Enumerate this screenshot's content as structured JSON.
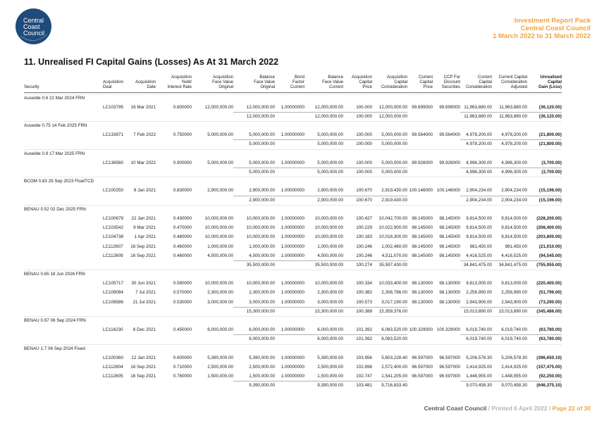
{
  "colors": {
    "accent": "#f2a33a",
    "logo": "#1f4b7b"
  },
  "logo": {
    "lines": [
      "Central",
      "Coast",
      "Council"
    ]
  },
  "brand": {
    "line1": "Investment Report Pack",
    "line2": "Central Coast Council",
    "line3": "1 March 2022 to 31 March 2022"
  },
  "title": "11. Unrealised FI Capital Gains (Losses) As At 31 March 2022",
  "table": {
    "columns": [
      [
        "Security"
      ],
      [
        "Acquisition",
        "Deal"
      ],
      [
        "Acquisition",
        "Date"
      ],
      [
        "Acquisition",
        "Yield/",
        "Interest Rate"
      ],
      [
        "Acquisition",
        "Face Value",
        "Original"
      ],
      [
        "Balance",
        "Face Value",
        "Original"
      ],
      [
        "Bond",
        "Factor",
        "Current"
      ],
      [
        "Balance",
        "Face Value",
        "Current"
      ],
      [
        "Acquisition",
        "Capital",
        "Price"
      ],
      [
        "Acquisition",
        "Capital",
        "Consideration"
      ],
      [
        "Current",
        "Capital",
        "Price"
      ],
      [
        "CCP For",
        "Discount",
        "Securities"
      ],
      [
        "Current",
        "Capital",
        "Consideration"
      ],
      [
        "Current Capital",
        "Consideration",
        "Adjusted"
      ],
      [
        "Unrealised",
        "Capital",
        "Gain (Loss)"
      ]
    ],
    "groups": [
      {
        "security": "Auswide 0.6 22 Mar 2024 FRN",
        "rows": [
          [
            "LC103795",
            "16 Mar 2021",
            "0.600000",
            "12,000,000.00",
            "12,000,000.00",
            "1.00000000",
            "12,000,000.00",
            "100.000",
            "12,000,000.00",
            "99.699000",
            "99.699000",
            "11,963,880.00",
            "11,963,880.00",
            "(36,120.00)"
          ]
        ],
        "subtotal": [
          null,
          null,
          null,
          null,
          "12,000,000.00",
          null,
          "12,000,000.00",
          "100.000",
          "12,000,000.00",
          null,
          null,
          "11,963,880.00",
          "11,963,880.00",
          "(36,120.00)"
        ]
      },
      {
        "security": "Auswide 0.75 14 Feb 2025 FRN",
        "rows": [
          [
            "LC133971",
            "7 Feb 2022",
            "0.750000",
            "5,000,000.00",
            "5,000,000.00",
            "1.00000000",
            "5,000,000.00",
            "100.000",
            "5,000,000.00",
            "99.564000",
            "99.564000",
            "4,978,200.00",
            "4,978,200.00",
            "(21,800.00)"
          ]
        ],
        "subtotal": [
          null,
          null,
          null,
          null,
          "5,000,000.00",
          null,
          "5,000,000.00",
          "100.000",
          "5,000,000.00",
          null,
          null,
          "4,978,200.00",
          "4,978,200.00",
          "(21,800.00)"
        ]
      },
      {
        "security": "Auswide 0.9 17 Mar 2025 FRN",
        "rows": [
          [
            "LC136560",
            "10 Mar 2022",
            "0.900000",
            "5,000,000.00",
            "5,000,000.00",
            "1.00000000",
            "5,000,000.00",
            "100.000",
            "5,000,000.00",
            "99.926000",
            "99.926000",
            "4,996,300.00",
            "4,996,300.00",
            "(3,700.00)"
          ]
        ],
        "subtotal": [
          null,
          null,
          null,
          null,
          "5,000,000.00",
          null,
          "5,000,000.00",
          "100.000",
          "5,000,000.00",
          null,
          null,
          "4,996,300.00",
          "4,996,300.00",
          "(3,700.00)"
        ]
      },
      {
        "security": "BCOM 0.83 29 Sep 2023 FloatTCD",
        "rows": [
          [
            "LC100250",
            "8 Jan 2021",
            "0.830000",
            "2,900,000.00",
            "2,900,000.00",
            "1.00000000",
            "2,900,000.00",
            "100.670",
            "2,919,430.00",
            "100.146000",
            "100.146000",
            "2,904,234.00",
            "2,904,234.00",
            "(15,196.00)"
          ]
        ],
        "subtotal": [
          null,
          null,
          null,
          null,
          "2,900,000.00",
          null,
          "2,900,000.00",
          "100.670",
          "2,919,430.00",
          null,
          null,
          "2,904,234.00",
          "2,904,234.00",
          "(15,196.00)"
        ]
      },
      {
        "security": "BENAU 0.52 02 Dec 2025 FRN",
        "rows": [
          [
            "LC100679",
            "22 Jan 2021",
            "0.430000",
            "10,000,000.00",
            "10,000,000.00",
            "1.00000000",
            "10,000,000.00",
            "100.427",
            "10,042,700.00",
            "98.145000",
            "98.145000",
            "9,814,500.00",
            "9,814,500.00",
            "(228,200.00)"
          ],
          [
            "LC103542",
            "9 Mar 2021",
            "0.470000",
            "10,000,000.00",
            "10,000,000.00",
            "1.00000000",
            "10,000,000.00",
            "100.229",
            "10,022,900.00",
            "98.145000",
            "98.145000",
            "9,814,500.00",
            "9,814,500.00",
            "(208,400.00)"
          ],
          [
            "LC104738",
            "1 Apr 2021",
            "0.480000",
            "10,000,000.00",
            "10,000,000.00",
            "1.00000000",
            "10,000,000.00",
            "100.183",
            "10,018,300.00",
            "98.145000",
            "98.145000",
            "9,814,500.00",
            "9,814,500.00",
            "(203,800.00)"
          ],
          [
            "LC112607",
            "16 Sep 2021",
            "0.460000",
            "1,000,000.00",
            "1,000,000.00",
            "1.00000000",
            "1,000,000.00",
            "100.246",
            "1,002,460.00",
            "98.145000",
            "98.145000",
            "981,450.00",
            "981,450.00",
            "(21,010.00)"
          ],
          [
            "LC112609",
            "16 Sep 2021",
            "0.460000",
            "4,500,000.00",
            "4,500,000.00",
            "1.00000000",
            "4,500,000.00",
            "100.246",
            "4,511,070.00",
            "98.145000",
            "98.145000",
            "4,416,525.00",
            "4,416,525.00",
            "(94,545.00)"
          ]
        ],
        "subtotal": [
          null,
          null,
          null,
          null,
          "35,500,000.00",
          null,
          "35,500,000.00",
          "100.274",
          "35,597,430.00",
          null,
          null,
          "34,841,475.00",
          "34,841,475.00",
          "(755,955.00)"
        ]
      },
      {
        "security": "BENAU 0.65 18 Jun 2026 FRN",
        "rows": [
          [
            "LC105717",
            "30 Jun 2021",
            "0.580000",
            "10,000,000.00",
            "10,000,000.00",
            "1.00000000",
            "10,000,000.00",
            "100.334",
            "10,033,400.00",
            "98.130000",
            "98.130000",
            "9,813,000.00",
            "9,813,000.00",
            "(220,400.00)"
          ],
          [
            "LC109084",
            "7 Jul 2021",
            "0.570000",
            "2,300,000.00",
            "2,300,000.00",
            "1.00000000",
            "2,300,000.00",
            "100.382",
            "2,308,786.00",
            "98.130000",
            "98.130000",
            "2,256,990.00",
            "2,256,990.00",
            "(51,796.00)"
          ],
          [
            "LC109586",
            "21 Jul 2021",
            "0.530000",
            "3,000,000.00",
            "3,000,000.00",
            "1.00000000",
            "3,000,000.00",
            "100.573",
            "3,017,190.00",
            "98.130000",
            "98.130000",
            "2,943,900.00",
            "2,943,900.00",
            "(73,290.00)"
          ]
        ],
        "subtotal": [
          null,
          null,
          null,
          null,
          "15,300,000.00",
          null,
          "15,300,000.00",
          "100.388",
          "15,359,376.00",
          null,
          null,
          "15,013,890.00",
          "15,013,890.00",
          "(345,486.00)"
        ]
      },
      {
        "security": "BENAU 0.97 06 Sep 2024 FRN",
        "rows": [
          [
            "LC116230",
            "8 Dec 2021",
            "0.450000",
            "6,000,000.00",
            "6,000,000.00",
            "1.00000000",
            "6,000,000.00",
            "101.392",
            "6,083,520.00",
            "100.329000",
            "100.329000",
            "6,019,740.00",
            "6,019,740.00",
            "(63,780.00)"
          ]
        ],
        "subtotal": [
          null,
          null,
          null,
          null,
          "6,000,000.00",
          null,
          "6,000,000.00",
          "101.392",
          "6,083,520.00",
          null,
          null,
          "6,019,740.00",
          "6,019,740.00",
          "(63,780.00)"
        ]
      },
      {
        "security": "BENAU 1.7 06 Sep 2024 Fixed",
        "rows": [
          [
            "LC100360",
            "12 Jan 2021",
            "0.600000",
            "5,390,000.00",
            "5,390,000.00",
            "1.00000000",
            "5,390,000.00",
            "103.956",
            "5,603,228.40",
            "96.597000",
            "96.597000",
            "5,206,578.30",
            "5,206,578.30",
            "(396,650.10)"
          ],
          [
            "LC112604",
            "16 Sep 2021",
            "0.710000",
            "2,500,000.00",
            "2,500,000.00",
            "1.00000000",
            "2,500,000.00",
            "102.896",
            "2,572,400.00",
            "96.597000",
            "96.597000",
            "2,414,925.00",
            "2,414,925.00",
            "(157,475.00)"
          ],
          [
            "LC112605",
            "16 Sep 2021",
            "0.760000",
            "1,500,000.00",
            "1,500,000.00",
            "1.00000000",
            "1,500,000.00",
            "102.747",
            "1,541,205.00",
            "96.597000",
            "96.597000",
            "1,448,955.00",
            "1,448,955.00",
            "(92,250.00)"
          ]
        ],
        "subtotal": [
          null,
          null,
          null,
          null,
          "9,390,000.00",
          null,
          "9,390,000.00",
          "103.481",
          "9,716,833.40",
          null,
          null,
          "9,070,458.30",
          "9,070,458.30",
          "(646,375.10)"
        ]
      }
    ]
  },
  "footer": {
    "org": "Central Coast Council",
    "printed": "/ Printed 6 April 2022 /",
    "page": "Page 22 of 30"
  }
}
